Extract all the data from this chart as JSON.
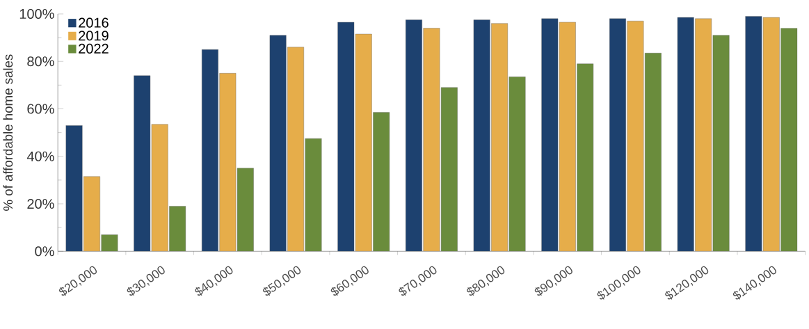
{
  "chart_data": {
    "type": "bar",
    "ylabel": "% of affordable home sales",
    "categories": [
      "$20,000",
      "$30,000",
      "$40,000",
      "$50,000",
      "$60,000",
      "$70,000",
      "$80,000",
      "$90,000",
      "$100,000",
      "$120,000",
      "$140,000"
    ],
    "series": [
      {
        "name": "2016",
        "color": "#1d416f",
        "values": [
          53,
          74,
          85,
          91,
          96.5,
          97.5,
          97.5,
          98,
          98,
          98.5,
          99
        ]
      },
      {
        "name": "2019",
        "color": "#e6ad4a",
        "values": [
          31.5,
          53.5,
          75,
          86,
          91.5,
          94,
          96,
          96.5,
          97,
          98,
          98.5
        ]
      },
      {
        "name": "2022",
        "color": "#6a8c3c",
        "values": [
          7,
          19,
          35,
          47.5,
          58.5,
          69,
          73.5,
          79,
          83.5,
          91,
          94
        ]
      }
    ],
    "ylim": [
      0,
      100
    ],
    "yticks": [
      {
        "value": 0,
        "label": "0%"
      },
      {
        "value": 20,
        "label": "20%"
      },
      {
        "value": 40,
        "label": "40%"
      },
      {
        "value": 60,
        "label": "60%"
      },
      {
        "value": 80,
        "label": "80%"
      },
      {
        "value": 100,
        "label": "100%"
      }
    ],
    "legend": "top left",
    "grid": false
  }
}
